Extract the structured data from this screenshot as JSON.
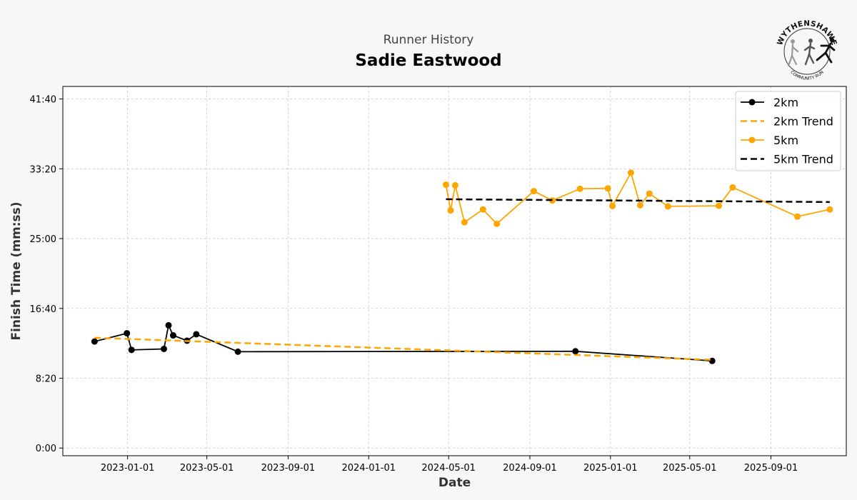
{
  "header": {
    "subtitle": "Runner History",
    "title": "Sadie Eastwood"
  },
  "logo": {
    "icon": "wythenshawe-community-run-logo",
    "top_text": "WYTHENSHAWE",
    "bottom_text": "COMMUNITY RUN"
  },
  "colors": {
    "series_2km": "#000000",
    "series_5km": "#FFA500",
    "trend_2km": "#FFA500",
    "trend_5km": "#000000",
    "background": "#f7f7f7",
    "plot_background": "#ffffff"
  },
  "chart_data": {
    "type": "line",
    "xlabel": "Date",
    "ylabel": "Finish Time (mm:ss)",
    "x_type": "date",
    "y_unit": "seconds",
    "xlim": [
      "2022-09-25",
      "2025-12-24"
    ],
    "ylim": [
      -55,
      2590
    ],
    "xticks": [
      "2023-01-01",
      "2023-05-01",
      "2023-09-01",
      "2024-01-01",
      "2024-05-01",
      "2024-09-01",
      "2025-01-01",
      "2025-05-01",
      "2025-09-01"
    ],
    "yticks": [
      0,
      500,
      1000,
      1500,
      2000,
      2500
    ],
    "ytick_labels": [
      "0:00",
      "8:20",
      "16:40",
      "25:00",
      "33:20",
      "41:40"
    ],
    "grid": true,
    "legend_position": "top-right",
    "series": [
      {
        "name": "2km",
        "style": "line-markers",
        "color": "#000000",
        "points": [
          {
            "x": "2022-11-12",
            "y": 763
          },
          {
            "x": "2022-12-31",
            "y": 822
          },
          {
            "x": "2023-01-07",
            "y": 703
          },
          {
            "x": "2023-02-25",
            "y": 710
          },
          {
            "x": "2023-03-04",
            "y": 879
          },
          {
            "x": "2023-03-11",
            "y": 807
          },
          {
            "x": "2023-04-01",
            "y": 769
          },
          {
            "x": "2023-04-15",
            "y": 815
          },
          {
            "x": "2023-06-17",
            "y": 690
          },
          {
            "x": "2024-11-09",
            "y": 693
          },
          {
            "x": "2025-06-04",
            "y": 624
          }
        ]
      },
      {
        "name": "2km Trend",
        "style": "dashed",
        "color": "#FFA500",
        "points": [
          {
            "x": "2022-11-12",
            "y": 790
          },
          {
            "x": "2025-06-04",
            "y": 632
          }
        ]
      },
      {
        "name": "5km",
        "style": "line-markers",
        "color": "#FFA500",
        "points": [
          {
            "x": "2024-04-27",
            "y": 1886
          },
          {
            "x": "2024-05-04",
            "y": 1702
          },
          {
            "x": "2024-05-11",
            "y": 1882
          },
          {
            "x": "2024-05-25",
            "y": 1617
          },
          {
            "x": "2024-06-22",
            "y": 1709
          },
          {
            "x": "2024-07-13",
            "y": 1606
          },
          {
            "x": "2024-09-07",
            "y": 1840
          },
          {
            "x": "2024-10-05",
            "y": 1773
          },
          {
            "x": "2024-11-16",
            "y": 1857
          },
          {
            "x": "2024-12-28",
            "y": 1860
          },
          {
            "x": "2025-01-04",
            "y": 1734
          },
          {
            "x": "2025-02-01",
            "y": 1972
          },
          {
            "x": "2025-02-15",
            "y": 1739
          },
          {
            "x": "2025-03-01",
            "y": 1822
          },
          {
            "x": "2025-03-29",
            "y": 1731
          },
          {
            "x": "2025-06-14",
            "y": 1735
          },
          {
            "x": "2025-07-05",
            "y": 1867
          },
          {
            "x": "2025-10-11",
            "y": 1658
          },
          {
            "x": "2025-11-29",
            "y": 1709
          }
        ]
      },
      {
        "name": "5km Trend",
        "style": "dashed",
        "color": "#000000",
        "points": [
          {
            "x": "2024-04-27",
            "y": 1782
          },
          {
            "x": "2025-11-29",
            "y": 1762
          }
        ]
      }
    ]
  }
}
